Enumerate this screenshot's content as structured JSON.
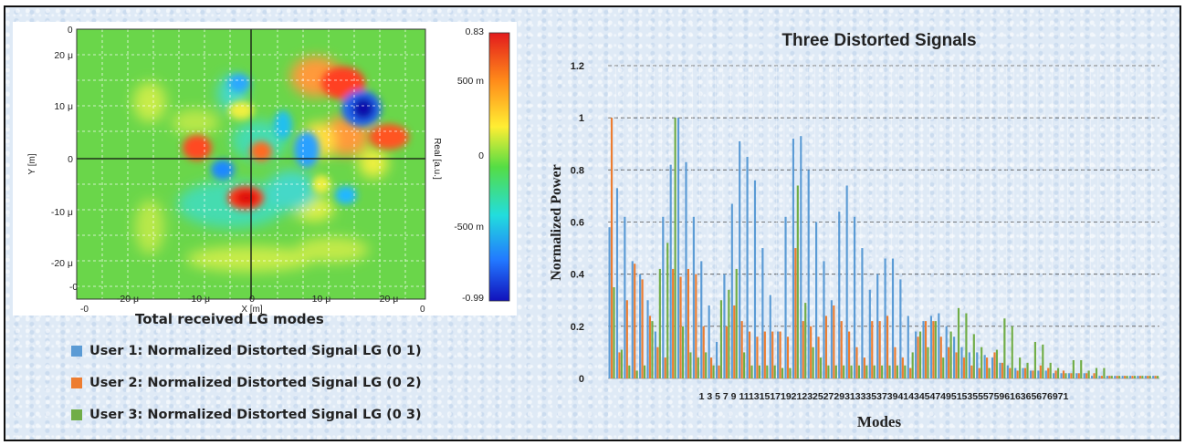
{
  "heatmap": {
    "caption": "Total received LG modes",
    "ylabel": "Y [m]",
    "xlabel": "X [m]",
    "colorbar_label": "Real [a.u.]",
    "y_ticks": [
      "20 μ",
      "10 μ",
      "0",
      "-10 μ",
      "-20 μ"
    ],
    "x_ticks": [
      "-20 μ",
      "-10 μ",
      "0",
      "10 μ",
      "20 μ"
    ],
    "corner_ticks": [
      "0",
      "-0",
      "-0",
      "0"
    ],
    "colorbar_ticks": [
      "0.83",
      "500 m",
      "0",
      "-500 m",
      "-0.99"
    ]
  },
  "chart_data": {
    "type": "bar",
    "title": "Three Distorted Signals",
    "xlabel": "Modes",
    "ylabel": "Normalized Power",
    "ylim": [
      0,
      1.2
    ],
    "y_ticks": [
      "0",
      "0.2",
      "0.4",
      "0.6",
      "0.8",
      "1",
      "1.2"
    ],
    "grid": true,
    "x_tick_text": "1 3 5 7 9 11131517192123252729313335373941434547495153555759616365676971",
    "categories": [
      1,
      2,
      3,
      4,
      5,
      6,
      7,
      8,
      9,
      10,
      11,
      12,
      13,
      14,
      15,
      16,
      17,
      18,
      19,
      20,
      21,
      22,
      23,
      24,
      25,
      26,
      27,
      28,
      29,
      30,
      31,
      32,
      33,
      34,
      35,
      36,
      37,
      38,
      39,
      40,
      41,
      42,
      43,
      44,
      45,
      46,
      47,
      48,
      49,
      50,
      51,
      52,
      53,
      54,
      55,
      56,
      57,
      58,
      59,
      60,
      61,
      62,
      63,
      64,
      65,
      66,
      67,
      68,
      69,
      70,
      71,
      72
    ],
    "series": [
      {
        "name": "User 1: Normalized Distorted Signal LG (0 1)",
        "color": "#5b9bd5",
        "values": [
          0.58,
          0.73,
          0.62,
          0.45,
          0.4,
          0.3,
          0.18,
          0.62,
          0.82,
          1.0,
          0.83,
          0.62,
          0.45,
          0.28,
          0.14,
          0.4,
          0.67,
          0.91,
          0.85,
          0.76,
          0.5,
          0.32,
          0.18,
          0.62,
          0.92,
          0.93,
          0.8,
          0.6,
          0.45,
          0.3,
          0.64,
          0.74,
          0.62,
          0.5,
          0.34,
          0.4,
          0.46,
          0.46,
          0.38,
          0.24,
          0.18,
          0.22,
          0.24,
          0.25,
          0.2,
          0.16,
          0.12,
          0.1,
          0.1,
          0.09,
          0.08,
          0.06,
          0.05,
          0.04,
          0.04,
          0.03,
          0.03,
          0.03,
          0.02,
          0.02,
          0.02,
          0.02,
          0.02,
          0.01,
          0.01,
          0.01,
          0.01,
          0.01,
          0.01,
          0.01,
          0.01,
          0.01
        ]
      },
      {
        "name": "User 2: Normalized Distorted Signal LG (0 2)",
        "color": "#ed7d31",
        "values": [
          1.0,
          0.1,
          0.3,
          0.44,
          0.38,
          0.24,
          0.12,
          0.08,
          0.42,
          0.39,
          0.42,
          0.4,
          0.2,
          0.08,
          0.05,
          0.2,
          0.28,
          0.22,
          0.18,
          0.16,
          0.18,
          0.18,
          0.18,
          0.16,
          0.5,
          0.22,
          0.2,
          0.16,
          0.24,
          0.28,
          0.22,
          0.18,
          0.12,
          0.08,
          0.22,
          0.22,
          0.24,
          0.12,
          0.08,
          0.04,
          0.16,
          0.22,
          0.22,
          0.16,
          0.12,
          0.1,
          0.08,
          0.05,
          0.04,
          0.08,
          0.1,
          0.06,
          0.04,
          0.03,
          0.04,
          0.03,
          0.05,
          0.04,
          0.03,
          0.03,
          0.02,
          0.02,
          0.02,
          0.02,
          0.01,
          0.01,
          0.01,
          0.01,
          0.01,
          0.01,
          0.01,
          0.01
        ]
      },
      {
        "name": "User 3: Normalized Distorted Signal LG (0 3)",
        "color": "#70ad47",
        "values": [
          0.35,
          0.11,
          0.05,
          0.03,
          0.05,
          0.22,
          0.42,
          0.52,
          1.0,
          0.2,
          0.1,
          0.08,
          0.1,
          0.05,
          0.3,
          0.34,
          0.42,
          0.1,
          0.05,
          0.05,
          0.05,
          0.05,
          0.04,
          0.04,
          0.74,
          0.29,
          0.12,
          0.08,
          0.05,
          0.05,
          0.05,
          0.05,
          0.05,
          0.05,
          0.05,
          0.05,
          0.05,
          0.05,
          0.05,
          0.1,
          0.18,
          0.12,
          0.22,
          0.08,
          0.18,
          0.27,
          0.25,
          0.17,
          0.12,
          0.04,
          0.11,
          0.23,
          0.2,
          0.08,
          0.06,
          0.14,
          0.13,
          0.06,
          0.04,
          0.02,
          0.07,
          0.07,
          0.03,
          0.04,
          0.04,
          0.01,
          0.01,
          0.01,
          0.01,
          0.01,
          0.01,
          0.01
        ]
      }
    ]
  }
}
